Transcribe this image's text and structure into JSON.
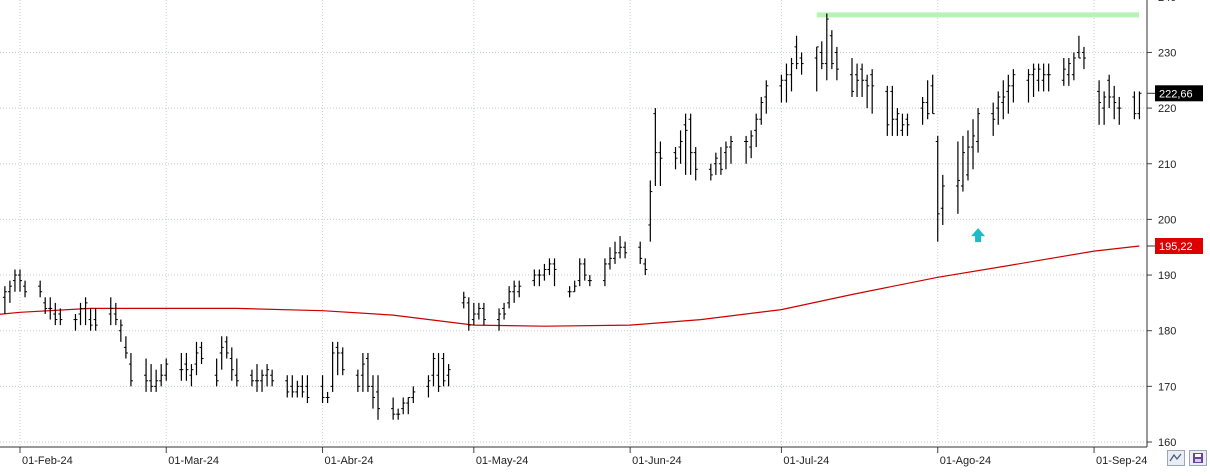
{
  "chart_data": {
    "type": "ohlc",
    "title": "",
    "xlabel": "",
    "ylabel": "",
    "ylim": [
      160,
      240
    ],
    "y_ticks": [
      160,
      170,
      180,
      190,
      200,
      210,
      220,
      230
    ],
    "y_tick_labels": [
      "160",
      "170",
      "180",
      "190",
      "200",
      "210",
      "220",
      "230"
    ],
    "x_tick_labels": [
      "01-Feb-24",
      "01-Mar-24",
      "01-Abr-24",
      "01-May-24",
      "01-Jun-24",
      "01-Jul-24",
      "01-Ago-24",
      "01-Sep-24"
    ],
    "x_tick_dates": [
      "2024-02-01",
      "2024-03-01",
      "2024-04-01",
      "2024-05-01",
      "2024-06-01",
      "2024-07-01",
      "2024-08-01",
      "2024-09-01"
    ],
    "grid": true,
    "last_price_label": "222,66",
    "moving_average_label": "195,22",
    "price_series": {
      "name": "",
      "color": "#000000",
      "dates": [
        "2024-01-23",
        "2024-01-24",
        "2024-01-25",
        "2024-01-26",
        "2024-01-29",
        "2024-01-30",
        "2024-01-31",
        "2024-02-01",
        "2024-02-02",
        "2024-02-05",
        "2024-02-06",
        "2024-02-07",
        "2024-02-08",
        "2024-02-09",
        "2024-02-12",
        "2024-02-13",
        "2024-02-14",
        "2024-02-15",
        "2024-02-16",
        "2024-02-19",
        "2024-02-20",
        "2024-02-21",
        "2024-02-22",
        "2024-02-23",
        "2024-02-26",
        "2024-02-27",
        "2024-02-28",
        "2024-02-29",
        "2024-03-01",
        "2024-03-04",
        "2024-03-05",
        "2024-03-06",
        "2024-03-07",
        "2024-03-08",
        "2024-03-11",
        "2024-03-12",
        "2024-03-13",
        "2024-03-14",
        "2024-03-15",
        "2024-03-18",
        "2024-03-19",
        "2024-03-20",
        "2024-03-21",
        "2024-03-22",
        "2024-03-25",
        "2024-03-26",
        "2024-03-27",
        "2024-03-28",
        "2024-03-29",
        "2024-04-01",
        "2024-04-02",
        "2024-04-03",
        "2024-04-04",
        "2024-04-05",
        "2024-04-08",
        "2024-04-09",
        "2024-04-10",
        "2024-04-11",
        "2024-04-12",
        "2024-04-15",
        "2024-04-16",
        "2024-04-17",
        "2024-04-18",
        "2024-04-19",
        "2024-04-22",
        "2024-04-23",
        "2024-04-24",
        "2024-04-25",
        "2024-04-26",
        "2024-04-29",
        "2024-04-30",
        "2024-05-01",
        "2024-05-02",
        "2024-05-03",
        "2024-05-06",
        "2024-05-07",
        "2024-05-08",
        "2024-05-09",
        "2024-05-10",
        "2024-05-13",
        "2024-05-14",
        "2024-05-15",
        "2024-05-16",
        "2024-05-17",
        "2024-05-20",
        "2024-05-21",
        "2024-05-22",
        "2024-05-23",
        "2024-05-24",
        "2024-05-27",
        "2024-05-28",
        "2024-05-29",
        "2024-05-30",
        "2024-05-31",
        "2024-06-03",
        "2024-06-04",
        "2024-06-05",
        "2024-06-06",
        "2024-06-07",
        "2024-06-10",
        "2024-06-11",
        "2024-06-12",
        "2024-06-13",
        "2024-06-14",
        "2024-06-17",
        "2024-06-18",
        "2024-06-19",
        "2024-06-20",
        "2024-06-21",
        "2024-06-24",
        "2024-06-25",
        "2024-06-26",
        "2024-06-27",
        "2024-06-28",
        "2024-07-01",
        "2024-07-02",
        "2024-07-03",
        "2024-07-04",
        "2024-07-05",
        "2024-07-08",
        "2024-07-09",
        "2024-07-10",
        "2024-07-11",
        "2024-07-12",
        "2024-07-15",
        "2024-07-16",
        "2024-07-17",
        "2024-07-18",
        "2024-07-19",
        "2024-07-22",
        "2024-07-23",
        "2024-07-24",
        "2024-07-25",
        "2024-07-26",
        "2024-07-29",
        "2024-07-30",
        "2024-07-31",
        "2024-08-01",
        "2024-08-02",
        "2024-08-05",
        "2024-08-06",
        "2024-08-07",
        "2024-08-08",
        "2024-08-09",
        "2024-08-12",
        "2024-08-13",
        "2024-08-14",
        "2024-08-15",
        "2024-08-16",
        "2024-08-19",
        "2024-08-20",
        "2024-08-21",
        "2024-08-22",
        "2024-08-23",
        "2024-08-26",
        "2024-08-27",
        "2024-08-28",
        "2024-08-29",
        "2024-08-30",
        "2024-09-02",
        "2024-09-03",
        "2024-09-04",
        "2024-09-05",
        "2024-09-06",
        "2024-09-09",
        "2024-09-10"
      ],
      "high": [
        192,
        188,
        187,
        184,
        188,
        189,
        191,
        191,
        189,
        189,
        186,
        186,
        185,
        184,
        183,
        185,
        186,
        184,
        184,
        186,
        185,
        182,
        179,
        176,
        175,
        174,
        173,
        174,
        175,
        176,
        176,
        174,
        178,
        178,
        175,
        179,
        179,
        177,
        175,
        173,
        174,
        173,
        174,
        173,
        172,
        172,
        171,
        172,
        172,
        172,
        169,
        178,
        178,
        177,
        173,
        176,
        176,
        172,
        172,
        168,
        166,
        168,
        168,
        170,
        172,
        176,
        176,
        176,
        174,
        187,
        186,
        185,
        185,
        185,
        184,
        185,
        188,
        189,
        189,
        191,
        191,
        192,
        193,
        193,
        188,
        189,
        193,
        193,
        190,
        193,
        195,
        196,
        197,
        196,
        196,
        193,
        207,
        220,
        214,
        213,
        216,
        219,
        219,
        213,
        210,
        212,
        213,
        214,
        215,
        215,
        216,
        219,
        222,
        225,
        226,
        228,
        229,
        233,
        230,
        231,
        232,
        237,
        234,
        231,
        229,
        228,
        228,
        226,
        227,
        224,
        224,
        220,
        219,
        219,
        222,
        225,
        226,
        215,
        208,
        214,
        215,
        216,
        218,
        220,
        221,
        223,
        225,
        226,
        227,
        227,
        228,
        228,
        228,
        228,
        229,
        229,
        230,
        233,
        231,
        225,
        223,
        226,
        224,
        222,
        223,
        223
      ],
      "low": [
        187,
        184,
        183,
        179,
        183,
        185,
        187,
        187,
        186,
        186,
        183,
        182,
        181,
        181,
        180,
        181,
        181,
        180,
        180,
        181,
        181,
        178,
        175,
        170,
        169,
        169,
        169,
        170,
        171,
        171,
        171,
        170,
        172,
        174,
        170,
        173,
        175,
        171,
        170,
        170,
        169,
        169,
        170,
        170,
        168,
        168,
        168,
        168,
        167,
        167,
        167,
        169,
        172,
        172,
        169,
        169,
        169,
        166,
        164,
        164,
        164,
        165,
        165,
        167,
        168,
        170,
        169,
        170,
        170,
        184,
        180,
        181,
        182,
        181,
        180,
        182,
        184,
        185,
        186,
        188,
        188,
        189,
        190,
        188,
        186,
        187,
        188,
        189,
        188,
        188,
        191,
        192,
        193,
        193,
        192,
        190,
        196,
        206,
        206,
        209,
        210,
        208,
        208,
        207,
        207,
        208,
        208,
        209,
        210,
        210,
        211,
        213,
        217,
        219,
        221,
        221,
        223,
        227,
        226,
        223,
        227,
        225,
        227,
        225,
        222,
        222,
        222,
        220,
        219,
        215,
        215,
        215,
        215,
        215,
        217,
        218,
        219,
        196,
        199,
        201,
        205,
        207,
        209,
        212,
        215,
        217,
        218,
        219,
        221,
        221,
        222,
        223,
        223,
        223,
        224,
        224,
        225,
        229,
        227,
        217,
        217,
        220,
        218,
        217,
        218,
        218
      ],
      "open": [
        191,
        186,
        185,
        182,
        186,
        187,
        189,
        190,
        188,
        188,
        185,
        184,
        183,
        183,
        182,
        183,
        184,
        182,
        182,
        183,
        183,
        180,
        177,
        174,
        172,
        171,
        170,
        171,
        172,
        173,
        174,
        172,
        174,
        177,
        172,
        176,
        178,
        175,
        172,
        172,
        171,
        171,
        172,
        172,
        171,
        170,
        169,
        170,
        170,
        170,
        168,
        170,
        177,
        176,
        172,
        172,
        175,
        170,
        169,
        166,
        165,
        166,
        167,
        168,
        170,
        172,
        172,
        175,
        172,
        185,
        185,
        182,
        183,
        184,
        182,
        184,
        185,
        187,
        187,
        189,
        190,
        190,
        191,
        192,
        187,
        187,
        189,
        192,
        189,
        189,
        192,
        193,
        194,
        195,
        195,
        192,
        199,
        219,
        212,
        212,
        213,
        217,
        218,
        212,
        209,
        210,
        210,
        212,
        213,
        214,
        213,
        216,
        218,
        222,
        224,
        225,
        226,
        231,
        229,
        229,
        230,
        228,
        233,
        230,
        226,
        226,
        227,
        225,
        226,
        223,
        223,
        218,
        216,
        218,
        220,
        221,
        224,
        214,
        202,
        206,
        206,
        208,
        213,
        214,
        219,
        220,
        221,
        223,
        224,
        225,
        226,
        225,
        225,
        226,
        225,
        226,
        226,
        230,
        230,
        223,
        220,
        225,
        222,
        220,
        222,
        219
      ],
      "close": [
        188,
        186,
        184,
        183,
        187,
        188,
        190,
        189,
        187,
        187,
        184,
        184,
        182,
        182,
        182,
        184,
        185,
        181,
        181,
        184,
        182,
        181,
        176,
        171,
        171,
        170,
        171,
        172,
        174,
        173,
        173,
        173,
        176,
        175,
        171,
        177,
        176,
        173,
        171,
        171,
        171,
        172,
        173,
        171,
        169,
        169,
        170,
        169,
        168,
        168,
        168,
        176,
        176,
        173,
        170,
        174,
        170,
        168,
        166,
        165,
        165,
        167,
        168,
        169,
        171,
        175,
        170,
        171,
        173,
        186,
        181,
        183,
        184,
        182,
        183,
        183,
        187,
        188,
        188,
        190,
        190,
        191,
        192,
        191,
        187,
        188,
        192,
        190,
        189,
        192,
        193,
        194,
        195,
        194,
        193,
        191,
        205,
        212,
        211,
        211,
        214,
        216,
        212,
        209,
        208,
        211,
        209,
        213,
        214,
        214,
        215,
        218,
        221,
        224,
        225,
        226,
        228,
        228,
        228,
        231,
        228,
        236,
        228,
        227,
        223,
        225,
        225,
        224,
        224,
        217,
        218,
        219,
        217,
        217,
        221,
        219,
        219,
        201,
        206,
        207,
        212,
        213,
        215,
        219,
        218,
        222,
        222,
        224,
        226,
        226,
        227,
        227,
        226,
        226,
        227,
        228,
        229,
        229,
        229,
        221,
        222,
        222,
        221,
        220,
        219,
        222.66
      ]
    },
    "moving_average_series": {
      "name": "",
      "color": "#cc0000",
      "dates": [
        "2024-01-23",
        "2024-02-01",
        "2024-02-15",
        "2024-03-01",
        "2024-03-15",
        "2024-04-01",
        "2024-04-15",
        "2024-05-01",
        "2024-05-15",
        "2024-06-01",
        "2024-06-15",
        "2024-07-01",
        "2024-07-15",
        "2024-08-01",
        "2024-08-15",
        "2024-09-01",
        "2024-09-10"
      ],
      "values": [
        182.5,
        183.3,
        184.0,
        184.0,
        184.0,
        183.6,
        182.8,
        181.0,
        180.8,
        181.0,
        182.0,
        183.8,
        186.5,
        189.6,
        191.7,
        194.3,
        195.22
      ]
    },
    "resistance_zone": {
      "from": "2024-07-08",
      "to": "2024-09-13",
      "low": 236.3,
      "high": 237.2,
      "color": "#b8f2b4"
    },
    "annotation_arrow": {
      "date": "2024-08-09",
      "value": 197,
      "color": "#1fbac8",
      "direction": "up"
    },
    "colors": {
      "background": "#ffffff",
      "grid": "#c6ced9",
      "price_badge_bg": "#000000",
      "ma_badge_bg": "#dd0000",
      "badge_text": "#ffffff"
    }
  }
}
